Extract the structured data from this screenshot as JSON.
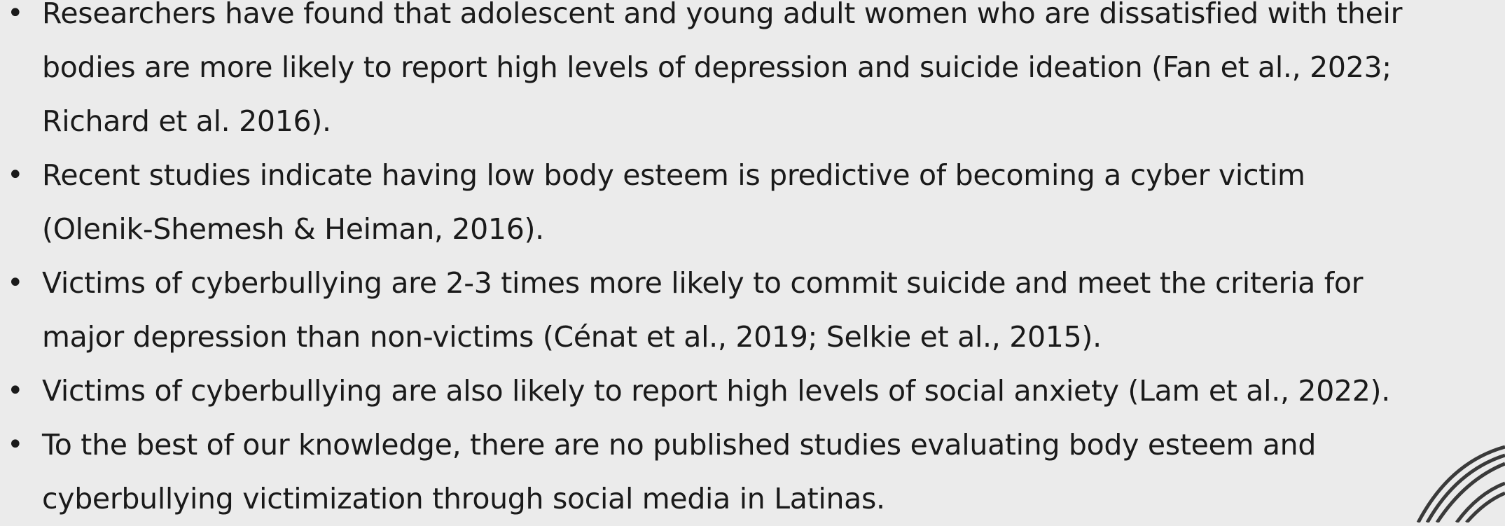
{
  "bullets": [
    {
      "lines": [
        "Researchers have found that adolescent and young adult women who are dissatisfied with their",
        "bodies are more likely to report high levels of depression and suicide ideation (Fan et al., 2023;",
        "Richard et al. 2016)."
      ]
    },
    {
      "lines": [
        "Recent studies indicate having low body esteem is predictive of becoming a cyber victim",
        "(Olenik-Shemesh & Heiman, 2016)."
      ]
    },
    {
      "lines": [
        "Victims of cyberbullying are 2-3 times more likely to commit suicide and meet the criteria for",
        "major depression than non-victims (Cénat et al., 2019; Selkie et al., 2015)."
      ]
    },
    {
      "lines": [
        "Victims of cyberbullying are also likely to report high levels of social anxiety (Lam et al., 2022)."
      ]
    },
    {
      "lines": [
        "To the best of our knowledge, there are no published studies evaluating body esteem and",
        "cyberbullying victimization through social media in Latinas."
      ]
    }
  ]
}
